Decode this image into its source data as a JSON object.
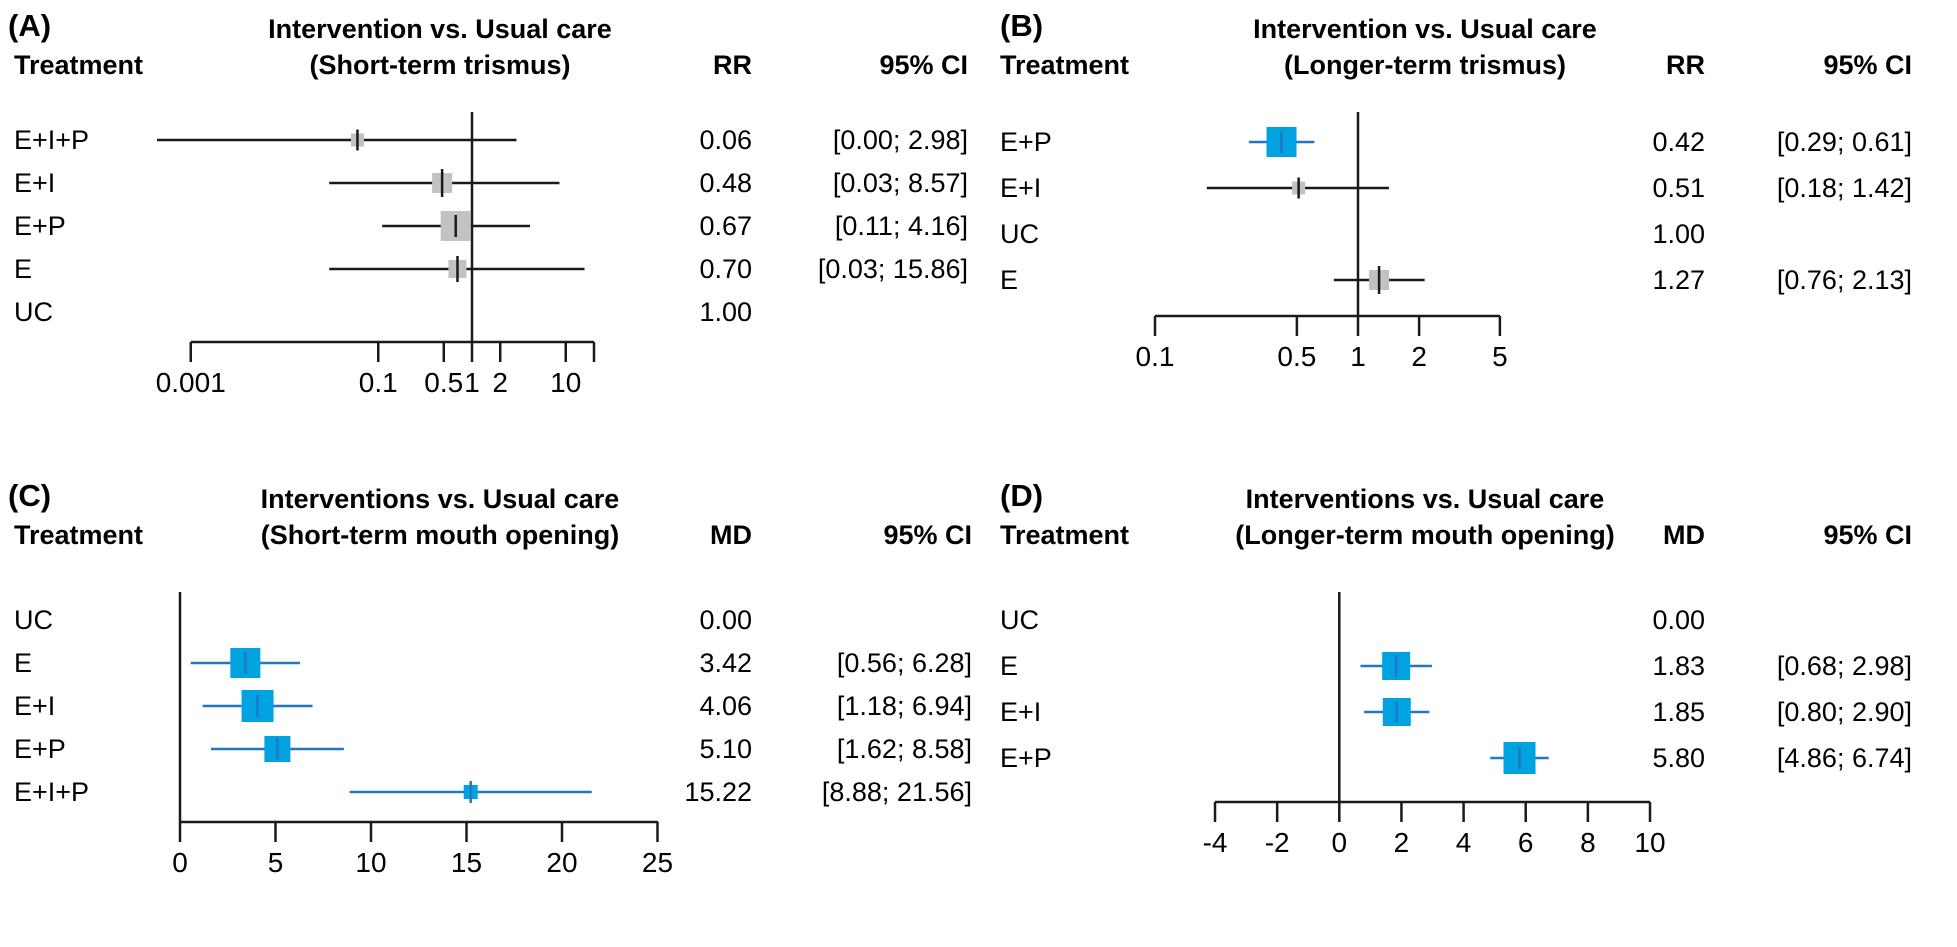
{
  "colors": {
    "blue_fill": "#00a3e0",
    "blue_line": "#2277c4",
    "blue_text": "#1b75bc",
    "gray_fill": "#c2c2c2",
    "black_line": "#1a1a1a",
    "black_text": "#000000"
  },
  "chart_data": [
    {
      "id": "A",
      "type": "forest",
      "panel_label": "(A)",
      "treatment_header": "Treatment",
      "title_lines": [
        "Intervention vs. Usual care",
        "(Short-term trismus)"
      ],
      "effect_header": "RR",
      "ci_header": "95% CI",
      "scale": "log",
      "ref_value": 1,
      "axis_ticks": [
        {
          "v": 0.001,
          "label": "0.001"
        },
        {
          "v": 0.1,
          "label": "0.1"
        },
        {
          "v": 0.5,
          "label": "0.5"
        },
        {
          "v": 1,
          "label": "1"
        },
        {
          "v": 2,
          "label": "2"
        },
        {
          "v": 10,
          "label": "10"
        }
      ],
      "rows": [
        {
          "treatment": "E+I+P",
          "est": 0.06,
          "lo": 0.0,
          "hi": 2.98,
          "est_text": "0.06",
          "ci_text": "[0.00;  2.98]",
          "style": "gray",
          "size": 13
        },
        {
          "treatment": "E+I",
          "est": 0.48,
          "lo": 0.03,
          "hi": 8.57,
          "est_text": "0.48",
          "ci_text": "[0.03;  8.57]",
          "style": "gray",
          "size": 20
        },
        {
          "treatment": "E+P",
          "est": 0.67,
          "lo": 0.11,
          "hi": 4.16,
          "est_text": "0.67",
          "ci_text": "[0.11;  4.16]",
          "style": "gray",
          "size": 30
        },
        {
          "treatment": "E",
          "est": 0.7,
          "lo": 0.03,
          "hi": 15.86,
          "est_text": "0.70",
          "ci_text": "[0.03; 15.86]",
          "style": "gray",
          "size": 18
        },
        {
          "treatment": "UC",
          "est": 1.0,
          "lo": null,
          "hi": null,
          "est_text": "1.00",
          "ci_text": "",
          "style": "none",
          "size": 0
        }
      ]
    },
    {
      "id": "B",
      "type": "forest",
      "panel_label": "(B)",
      "treatment_header": "Treatment",
      "title_lines": [
        "Intervention vs. Usual care",
        "(Longer-term trismus)"
      ],
      "effect_header": "RR",
      "ci_header": "95% CI",
      "scale": "log",
      "ref_value": 1,
      "axis_ticks": [
        {
          "v": 0.1,
          "label": "0.1"
        },
        {
          "v": 0.5,
          "label": "0.5"
        },
        {
          "v": 1,
          "label": "1"
        },
        {
          "v": 2,
          "label": "2"
        },
        {
          "v": 5,
          "label": "5"
        }
      ],
      "rows": [
        {
          "treatment": "E+P",
          "est": 0.42,
          "lo": 0.29,
          "hi": 0.61,
          "est_text": "0.42",
          "ci_text": "[0.29; 0.61]",
          "style": "blue",
          "size": 30
        },
        {
          "treatment": "E+I",
          "est": 0.51,
          "lo": 0.18,
          "hi": 1.42,
          "est_text": "0.51",
          "ci_text": "[0.18; 1.42]",
          "style": "gray",
          "size": 13
        },
        {
          "treatment": "UC",
          "est": 1.0,
          "lo": null,
          "hi": null,
          "est_text": "1.00",
          "ci_text": "",
          "style": "none",
          "size": 0
        },
        {
          "treatment": "E",
          "est": 1.27,
          "lo": 0.76,
          "hi": 2.13,
          "est_text": "1.27",
          "ci_text": "[0.76; 2.13]",
          "style": "gray",
          "size": 20
        }
      ]
    },
    {
      "id": "C",
      "type": "forest",
      "panel_label": "(C)",
      "treatment_header": "Treatment",
      "title_lines": [
        "Interventions vs. Usual care",
        "(Short-term mouth opening)"
      ],
      "effect_header": "MD",
      "ci_header": "95% CI",
      "scale": "linear",
      "ref_value": 0,
      "axis_ticks": [
        {
          "v": 0,
          "label": "0"
        },
        {
          "v": 5,
          "label": "5"
        },
        {
          "v": 10,
          "label": "10"
        },
        {
          "v": 15,
          "label": "15"
        },
        {
          "v": 20,
          "label": "20"
        },
        {
          "v": 25,
          "label": "25"
        }
      ],
      "rows": [
        {
          "treatment": "UC",
          "est": 0.0,
          "lo": null,
          "hi": null,
          "est_text": "0.00",
          "ci_text": "",
          "style": "none",
          "size": 0
        },
        {
          "treatment": "E",
          "est": 3.42,
          "lo": 0.56,
          "hi": 6.28,
          "est_text": "3.42",
          "ci_text": "[0.56;  6.28]",
          "style": "blue",
          "size": 30
        },
        {
          "treatment": "E+I",
          "est": 4.06,
          "lo": 1.18,
          "hi": 6.94,
          "est_text": "4.06",
          "ci_text": "[1.18;  6.94]",
          "style": "blue",
          "size": 32
        },
        {
          "treatment": "E+P",
          "est": 5.1,
          "lo": 1.62,
          "hi": 8.58,
          "est_text": "5.10",
          "ci_text": "[1.62;  8.58]",
          "style": "blue",
          "size": 26
        },
        {
          "treatment": "E+I+P",
          "est": 15.22,
          "lo": 8.88,
          "hi": 21.56,
          "est_text": "15.22",
          "ci_text": "[8.88; 21.56]",
          "style": "blue",
          "size": 14
        }
      ]
    },
    {
      "id": "D",
      "type": "forest",
      "panel_label": "(D)",
      "treatment_header": "Treatment",
      "title_lines": [
        "Interventions vs. Usual care",
        "(Longer-term mouth opening)"
      ],
      "effect_header": "MD",
      "ci_header": "95% CI",
      "scale": "linear",
      "ref_value": 0,
      "axis_ticks": [
        {
          "v": -4,
          "label": "-4"
        },
        {
          "v": -2,
          "label": "-2"
        },
        {
          "v": 0,
          "label": "0"
        },
        {
          "v": 2,
          "label": "2"
        },
        {
          "v": 4,
          "label": "4"
        },
        {
          "v": 6,
          "label": "6"
        },
        {
          "v": 8,
          "label": "8"
        },
        {
          "v": 10,
          "label": "10"
        }
      ],
      "rows": [
        {
          "treatment": "UC",
          "est": 0.0,
          "lo": null,
          "hi": null,
          "est_text": "0.00",
          "ci_text": "",
          "style": "none",
          "size": 0
        },
        {
          "treatment": "E",
          "est": 1.83,
          "lo": 0.68,
          "hi": 2.98,
          "est_text": "1.83",
          "ci_text": "[0.68; 2.98]",
          "style": "blue",
          "size": 28
        },
        {
          "treatment": "E+I",
          "est": 1.85,
          "lo": 0.8,
          "hi": 2.9,
          "est_text": "1.85",
          "ci_text": "[0.80; 2.90]",
          "style": "blue",
          "size": 28
        },
        {
          "treatment": "E+P",
          "est": 5.8,
          "lo": 4.86,
          "hi": 6.74,
          "est_text": "5.80",
          "ci_text": "[4.86; 6.74]",
          "style": "blue",
          "size": 32
        }
      ]
    }
  ]
}
